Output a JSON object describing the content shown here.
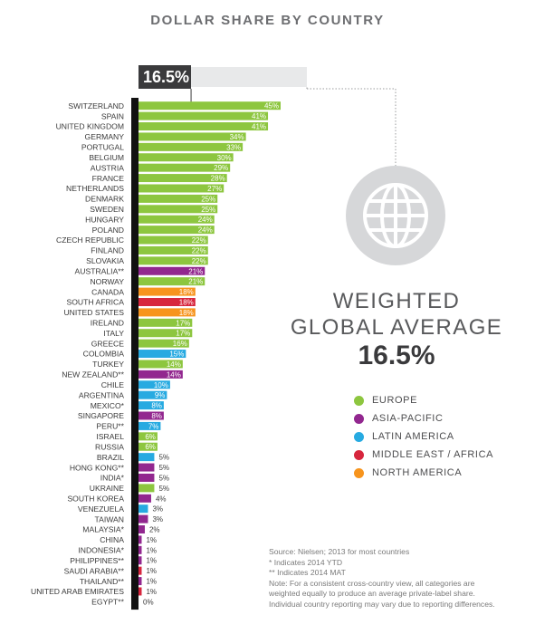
{
  "title": "DOLLAR SHARE BY COUNTRY",
  "average_box": {
    "label": "16.5%",
    "value": 16.5
  },
  "weighted_average": {
    "line1": "WEIGHTED",
    "line2": "GLOBAL AVERAGE",
    "value_label": "16.5%"
  },
  "icon": "globe-icon",
  "colors": {
    "europe": "#8dc63f",
    "asia_pacific": "#92278f",
    "latin_america": "#27aae1",
    "middle_east_africa": "#d7263d",
    "north_america": "#f7941d",
    "axis": "#111111",
    "globe_circle": "#d6d7d9"
  },
  "legend": [
    {
      "key": "europe",
      "label": "EUROPE"
    },
    {
      "key": "asia_pacific",
      "label": "ASIA-PACIFIC"
    },
    {
      "key": "latin_america",
      "label": "LATIN AMERICA"
    },
    {
      "key": "middle_east_africa",
      "label": "MIDDLE EAST / AFRICA"
    },
    {
      "key": "north_america",
      "label": "NORTH AMERICA"
    }
  ],
  "notes": [
    "Source: Nielsen; 2013 for most countries",
    "* Indicates 2014 YTD",
    "** Indicates 2014 MAT",
    "Note: For a consistent cross-country view, all categories are",
    "weighted equally to produce an average private-label share.",
    "Individual country reporting may vary due to reporting differences."
  ],
  "chart_data": {
    "type": "bar",
    "orientation": "horizontal",
    "title": "DOLLAR SHARE BY COUNTRY",
    "xlim": [
      0,
      45
    ],
    "reference_value": 16.5,
    "rows": [
      {
        "category": "SWITZERLAND",
        "value": 45,
        "label": "45%",
        "region": "europe"
      },
      {
        "category": "SPAIN",
        "value": 41,
        "label": "41%",
        "region": "europe"
      },
      {
        "category": "UNITED KINGDOM",
        "value": 41,
        "label": "41%",
        "region": "europe"
      },
      {
        "category": "GERMANY",
        "value": 34,
        "label": "34%",
        "region": "europe"
      },
      {
        "category": "PORTUGAL",
        "value": 33,
        "label": "33%",
        "region": "europe"
      },
      {
        "category": "BELGIUM",
        "value": 30,
        "label": "30%",
        "region": "europe"
      },
      {
        "category": "AUSTRIA",
        "value": 29,
        "label": "29%",
        "region": "europe"
      },
      {
        "category": "FRANCE",
        "value": 28,
        "label": "28%",
        "region": "europe"
      },
      {
        "category": "NETHERLANDS",
        "value": 27,
        "label": "27%",
        "region": "europe"
      },
      {
        "category": "DENMARK",
        "value": 25,
        "label": "25%",
        "region": "europe"
      },
      {
        "category": "SWEDEN",
        "value": 25,
        "label": "25%",
        "region": "europe"
      },
      {
        "category": "HUNGARY",
        "value": 24,
        "label": "24%",
        "region": "europe"
      },
      {
        "category": "POLAND",
        "value": 24,
        "label": "24%",
        "region": "europe"
      },
      {
        "category": "CZECH REPUBLIC",
        "value": 22,
        "label": "22%",
        "region": "europe"
      },
      {
        "category": "FINLAND",
        "value": 22,
        "label": "22%",
        "region": "europe"
      },
      {
        "category": "SLOVAKIA",
        "value": 22,
        "label": "22%",
        "region": "europe"
      },
      {
        "category": "AUSTRALIA**",
        "value": 21,
        "label": "21%",
        "region": "asia_pacific"
      },
      {
        "category": "NORWAY",
        "value": 21,
        "label": "21%",
        "region": "europe"
      },
      {
        "category": "CANADA",
        "value": 18,
        "label": "18%",
        "region": "north_america"
      },
      {
        "category": "SOUTH AFRICA",
        "value": 18,
        "label": "18%",
        "region": "middle_east_africa"
      },
      {
        "category": "UNITED STATES",
        "value": 18,
        "label": "18%",
        "region": "north_america"
      },
      {
        "category": "IRELAND",
        "value": 17,
        "label": "17%",
        "region": "europe"
      },
      {
        "category": "ITALY",
        "value": 17,
        "label": "17%",
        "region": "europe"
      },
      {
        "category": "GREECE",
        "value": 16,
        "label": "16%",
        "region": "europe"
      },
      {
        "category": "COLOMBIA",
        "value": 15,
        "label": "15%",
        "region": "latin_america"
      },
      {
        "category": "TURKEY",
        "value": 14,
        "label": "14%",
        "region": "europe"
      },
      {
        "category": "NEW ZEALAND**",
        "value": 14,
        "label": "14%",
        "region": "asia_pacific"
      },
      {
        "category": "CHILE",
        "value": 10,
        "label": "10%",
        "region": "latin_america"
      },
      {
        "category": "ARGENTINA",
        "value": 9,
        "label": "9%",
        "region": "latin_america"
      },
      {
        "category": "MEXICO*",
        "value": 8,
        "label": "8%",
        "region": "latin_america"
      },
      {
        "category": "SINGAPORE",
        "value": 8,
        "label": "8%",
        "region": "asia_pacific"
      },
      {
        "category": "PERU**",
        "value": 7,
        "label": "7%",
        "region": "latin_america"
      },
      {
        "category": "ISRAEL",
        "value": 6,
        "label": "6%",
        "region": "europe"
      },
      {
        "category": "RUSSIA",
        "value": 6,
        "label": "6%",
        "region": "europe"
      },
      {
        "category": "BRAZIL",
        "value": 5,
        "label": "5%",
        "region": "latin_america"
      },
      {
        "category": "HONG KONG**",
        "value": 5,
        "label": "5%",
        "region": "asia_pacific"
      },
      {
        "category": "INDIA*",
        "value": 5,
        "label": "5%",
        "region": "asia_pacific"
      },
      {
        "category": "UKRAINE",
        "value": 5,
        "label": "5%",
        "region": "europe"
      },
      {
        "category": "SOUTH KOREA",
        "value": 4,
        "label": "4%",
        "region": "asia_pacific"
      },
      {
        "category": "VENEZUELA",
        "value": 3,
        "label": "3%",
        "region": "latin_america"
      },
      {
        "category": "TAIWAN",
        "value": 3,
        "label": "3%",
        "region": "asia_pacific"
      },
      {
        "category": "MALAYSIA*",
        "value": 2,
        "label": "2%",
        "region": "asia_pacific"
      },
      {
        "category": "CHINA",
        "value": 1,
        "label": "1%",
        "region": "asia_pacific"
      },
      {
        "category": "INDONESIA*",
        "value": 1,
        "label": "1%",
        "region": "asia_pacific"
      },
      {
        "category": "PHILIPPINES**",
        "value": 1,
        "label": "1%",
        "region": "asia_pacific"
      },
      {
        "category": "SAUDI ARABIA**",
        "value": 1,
        "label": "1%",
        "region": "middle_east_africa"
      },
      {
        "category": "THAILAND**",
        "value": 1,
        "label": "1%",
        "region": "asia_pacific"
      },
      {
        "category": "UNITED ARAB EMIRATES",
        "value": 1,
        "label": "1%",
        "region": "middle_east_africa"
      },
      {
        "category": "EGYPT**",
        "value": 0,
        "label": "0%",
        "region": "middle_east_africa"
      }
    ]
  }
}
